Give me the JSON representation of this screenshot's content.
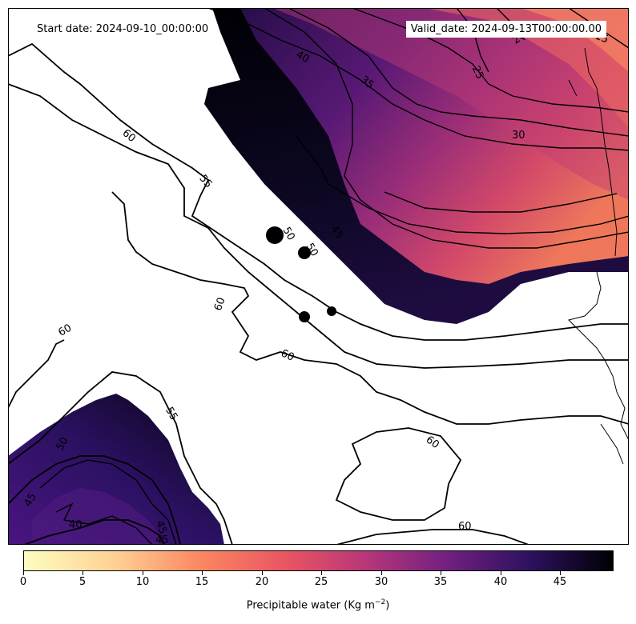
{
  "header": {
    "start_date": "Start date: 2024-09-10_00:00:00",
    "valid_date": "Valid_date: 2024-09-13T00:00:00.00"
  },
  "colorbar": {
    "label_prefix": "Precipitable water (Kg m",
    "label_exp": "−2",
    "label_suffix": ")",
    "colormap": "magma_r",
    "range": [
      0,
      49.5
    ],
    "ticks": [
      {
        "value": 0,
        "label": "0"
      },
      {
        "value": 5,
        "label": "5"
      },
      {
        "value": 10,
        "label": "10"
      },
      {
        "value": 15,
        "label": "15"
      },
      {
        "value": 20,
        "label": "20"
      },
      {
        "value": 25,
        "label": "25"
      },
      {
        "value": 30,
        "label": "30"
      },
      {
        "value": 35,
        "label": "35"
      },
      {
        "value": 40,
        "label": "40"
      },
      {
        "value": 45,
        "label": "45"
      }
    ],
    "colors": [
      "#fcfdbf",
      "#feb078",
      "#f1605d",
      "#b5367a",
      "#721f81",
      "#2c115f",
      "#000004"
    ]
  },
  "contour_labels": [
    "15",
    "20",
    "25",
    "30",
    "35",
    "40",
    "45",
    "50",
    "55",
    "60"
  ],
  "map": {
    "background": "#ffffff",
    "contour_color": "#000000"
  }
}
